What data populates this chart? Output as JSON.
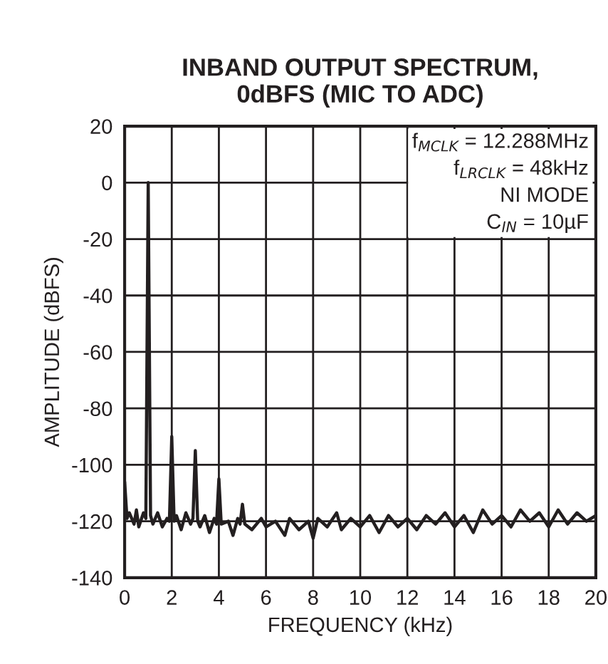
{
  "chart_data": {
    "type": "line",
    "title": "INBAND OUTPUT SPECTRUM,\n0dBFS (MIC TO ADC)",
    "xlabel": "FREQUENCY (kHz)",
    "ylabel": "AMPLITUDE (dBFS)",
    "annotations": [
      "f$_{MCLK}$ = 12.288MHz\nf$_{LRCLK}$ = 48kHz\nNI MODE\nC$_{IN}$ = 10µF"
    ],
    "xlim": [
      0,
      20
    ],
    "xticks": [
      0,
      2,
      4,
      6,
      8,
      10,
      12,
      14,
      16,
      18,
      20
    ],
    "ylim": [
      -140,
      20
    ],
    "yticks": [
      -140,
      -120,
      -100,
      -80,
      -60,
      -40,
      -20,
      0,
      20
    ],
    "grid": true,
    "marker": "none",
    "line_style": "solid",
    "series": [
      {
        "color": "#231f20",
        "x": [
          0,
          0.1,
          0.2,
          0.4,
          0.5,
          0.6,
          0.8,
          0.9,
          1.0,
          1.1,
          1.2,
          1.4,
          1.6,
          1.8,
          1.9,
          2.0,
          2.1,
          2.2,
          2.4,
          2.6,
          2.8,
          2.9,
          3.0,
          3.1,
          3.2,
          3.4,
          3.6,
          3.8,
          3.9,
          4.0,
          4.1,
          4.4,
          4.6,
          4.8,
          4.9,
          5.0,
          5.1,
          5.4,
          5.8,
          6.0,
          6.4,
          6.8,
          7.0,
          7.4,
          7.8,
          8.0,
          8.2,
          8.6,
          9.0,
          9.2,
          9.6,
          10.0,
          10.4,
          10.8,
          11.2,
          11.6,
          12.0,
          12.4,
          12.8,
          13.2,
          13.6,
          14.0,
          14.4,
          14.8,
          15.2,
          15.6,
          16.0,
          16.4,
          16.8,
          17.2,
          17.6,
          18.0,
          18.4,
          18.8,
          19.2,
          19.6,
          20.0
        ],
        "values": [
          -106,
          -119,
          -117,
          -121,
          -116,
          -122,
          -117,
          -119,
          0,
          -118,
          -121,
          -117,
          -122,
          -119,
          -120,
          -90,
          -120,
          -118,
          -123,
          -117,
          -121,
          -119,
          -95,
          -120,
          -122,
          -118,
          -124,
          -119,
          -121,
          -105,
          -121,
          -120,
          -125,
          -119,
          -121,
          -114,
          -121,
          -123,
          -119,
          -122,
          -120,
          -125,
          -119,
          -123,
          -120,
          -126,
          -119,
          -122,
          -117,
          -123,
          -119,
          -122,
          -118,
          -124,
          -118,
          -122,
          -119,
          -123,
          -118,
          -121,
          -117,
          -122,
          -118,
          -124,
          -116,
          -121,
          -118,
          -122,
          -116,
          -120,
          -117,
          -122,
          -116,
          -121,
          -117,
          -120,
          -118
        ]
      }
    ]
  }
}
